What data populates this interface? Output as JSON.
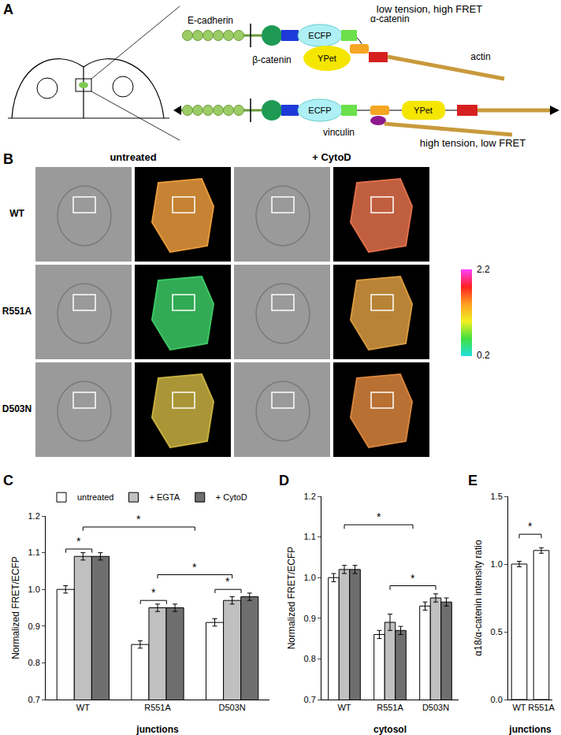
{
  "panels": {
    "A": {
      "label": "A",
      "text": {
        "cadherin": "E-cadherin",
        "beta": "β-catenin",
        "ecfp": "ECFP",
        "alpha": "α-catenin",
        "ypet": "YPet",
        "actin": "actin",
        "vinculin": "vinculin",
        "low": "low tension, high FRET",
        "high": "high tension, low FRET"
      }
    },
    "B": {
      "label": "B",
      "columns": [
        "untreated",
        "+ CytoD"
      ],
      "rows": [
        {
          "name": "WT",
          "colors": [
            "#e89a3c",
            "#e0704a"
          ]
        },
        {
          "name": "R551A",
          "colors": [
            "#3cc864",
            "#d89a40"
          ]
        },
        {
          "name": "D503N",
          "colors": [
            "#c8b040",
            "#d8843c"
          ]
        }
      ],
      "colorbar": {
        "min": 0.2,
        "max": 2.2
      }
    }
  },
  "chart_data": [
    {
      "label": "C",
      "type": "bar",
      "categories": [
        "WT",
        "R551A",
        "D503N"
      ],
      "x_label": "junctions",
      "y_label": "Normalized FRET/ECFP",
      "ylim": [
        0.7,
        1.2
      ],
      "yticks": [
        0.7,
        0.8,
        0.9,
        {
          "value": 1,
          "label": "1.0"
        },
        1.1,
        1.2
      ],
      "legend": "top",
      "series": [
        {
          "name": "untreated",
          "color": "#ffffff",
          "values": [
            1.0,
            0.85,
            0.91
          ],
          "errors": [
            0.01,
            0.01,
            0.01
          ]
        },
        {
          "name": "+ EGTA",
          "color": "#c0c0c0",
          "values": [
            1.09,
            0.95,
            0.97
          ],
          "errors": [
            0.01,
            0.01,
            0.01
          ]
        },
        {
          "name": "+ CytoD",
          "color": "#6e6e6e",
          "values": [
            1.09,
            0.95,
            0.98
          ],
          "errors": [
            0.01,
            0.01,
            0.01
          ]
        }
      ],
      "significance": [
        {
          "x0": -0.23,
          "x1": 0.12,
          "y": 1.11,
          "text": "*"
        },
        {
          "x0": 0.77,
          "x1": 1.12,
          "y": 0.97,
          "text": "*"
        },
        {
          "x0": 1.77,
          "x1": 2.12,
          "y": 1.0,
          "text": "*"
        },
        {
          "x0": 1.0,
          "x1": 2.0,
          "y": 1.04,
          "text": "*"
        },
        {
          "x0": 0.0,
          "x1": 1.5,
          "y": 1.17,
          "text": "*"
        }
      ]
    },
    {
      "label": "D",
      "type": "bar",
      "categories": [
        "WT",
        "R551A",
        "D503N"
      ],
      "x_label": "cytosol",
      "y_label": "Normalized FRET/ECFP",
      "ylim": [
        0.7,
        1.2
      ],
      "yticks": [
        0.7,
        0.8,
        0.9,
        {
          "value": 1,
          "label": "1.0"
        },
        1.1,
        1.2
      ],
      "series": [
        {
          "name": "untreated",
          "color": "#ffffff",
          "values": [
            1.0,
            0.86,
            0.93
          ],
          "errors": [
            0.01,
            0.01,
            0.01
          ]
        },
        {
          "name": "+ EGTA",
          "color": "#c0c0c0",
          "values": [
            1.02,
            0.89,
            0.95
          ],
          "errors": [
            0.01,
            0.02,
            0.01
          ]
        },
        {
          "name": "+ CytoD",
          "color": "#6e6e6e",
          "values": [
            1.02,
            0.87,
            0.94
          ],
          "errors": [
            0.01,
            0.01,
            0.01
          ]
        }
      ],
      "significance": [
        {
          "x0": 0.0,
          "x1": 1.5,
          "y": 1.13,
          "text": "*"
        },
        {
          "x0": 1.0,
          "x1": 2.0,
          "y": 0.98,
          "text": "*"
        }
      ]
    },
    {
      "label": "E",
      "type": "bar",
      "categories": [
        "WT",
        "R551A"
      ],
      "x_label": "junctions",
      "y_label": "α18/α-catenin intensity ratio",
      "ylim": [
        0,
        1.5
      ],
      "yticks": [
        {
          "value": 0,
          "label": "0.0"
        },
        0.5,
        {
          "value": 1,
          "label": "1.0"
        },
        1.5
      ],
      "color": "#ffffff",
      "values": [
        1.0,
        1.1
      ],
      "errors": [
        0.02,
        0.02
      ],
      "significance": [
        {
          "x0": 0,
          "x1": 1,
          "y": 1.22,
          "text": "*"
        }
      ]
    }
  ]
}
